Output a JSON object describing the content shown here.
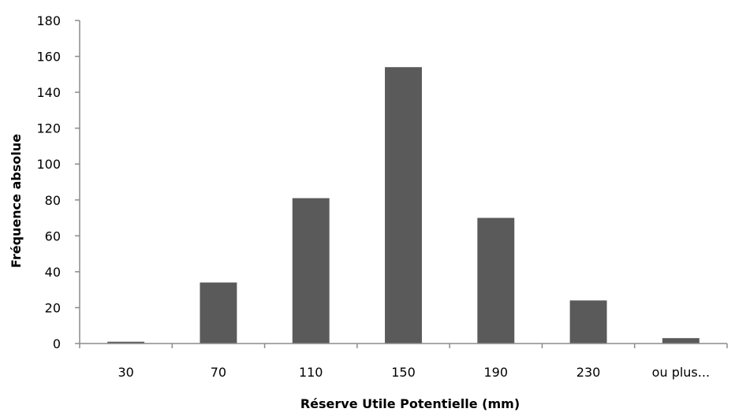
{
  "chart_data": {
    "type": "bar",
    "categories": [
      "30",
      "70",
      "110",
      "150",
      "190",
      "230",
      "ou plus..."
    ],
    "values": [
      1,
      34,
      81,
      154,
      70,
      24,
      3
    ],
    "xlabel": "Réserve Utile Potentielle (mm)",
    "ylabel": "Fréquence absolue",
    "ylim": [
      0,
      180
    ],
    "yticks": [
      0,
      20,
      40,
      60,
      80,
      100,
      120,
      140,
      160,
      180
    ],
    "grid": false,
    "legend": "none",
    "colors": {
      "bar": "#5a5a5a",
      "axis": "#8c8c8c"
    }
  }
}
